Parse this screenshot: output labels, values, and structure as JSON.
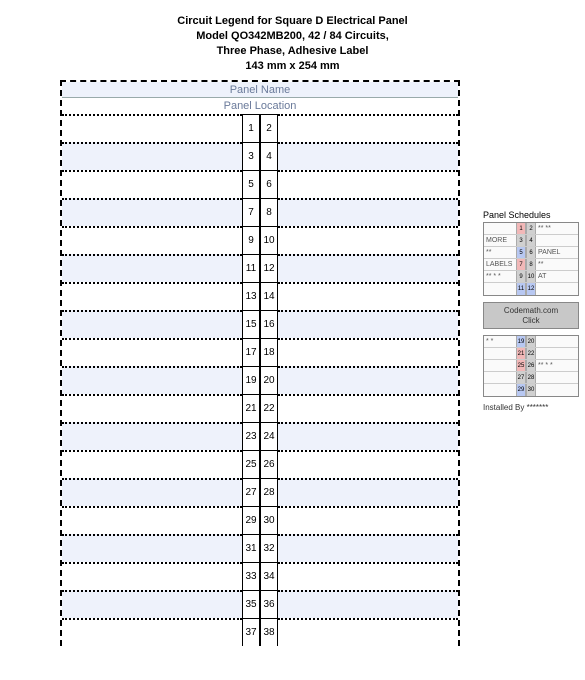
{
  "header": {
    "line1": "Circuit Legend for Square D Electrical Panel",
    "line2": "Model QO342MB200, 42 / 84 Circuits,",
    "line3": "Three Phase, Adhesive Label",
    "line4": "143 mm x 254 mm"
  },
  "panel": {
    "name_label": "Panel Name",
    "location_label": "Panel Location",
    "rows": [
      {
        "l": "1",
        "r": "2"
      },
      {
        "l": "3",
        "r": "4"
      },
      {
        "l": "5",
        "r": "6"
      },
      {
        "l": "7",
        "r": "8"
      },
      {
        "l": "9",
        "r": "10"
      },
      {
        "l": "11",
        "r": "12"
      },
      {
        "l": "13",
        "r": "14"
      },
      {
        "l": "15",
        "r": "16"
      },
      {
        "l": "17",
        "r": "18"
      },
      {
        "l": "19",
        "r": "20"
      },
      {
        "l": "21",
        "r": "22"
      },
      {
        "l": "23",
        "r": "24"
      },
      {
        "l": "25",
        "r": "26"
      },
      {
        "l": "27",
        "r": "28"
      },
      {
        "l": "29",
        "r": "30"
      },
      {
        "l": "31",
        "r": "32"
      },
      {
        "l": "33",
        "r": "34"
      },
      {
        "l": "35",
        "r": "36"
      },
      {
        "l": "37",
        "r": "38"
      }
    ],
    "colors": {
      "alt_bg": "#eef2fb",
      "base_bg": "#ffffff",
      "dotted": "#000000"
    }
  },
  "sidebar": {
    "title": "Panel Schedules",
    "table1": [
      {
        "l": "",
        "a": "1",
        "ac": "red",
        "b": "2",
        "bc": "gray",
        "r": "** **"
      },
      {
        "l": "MORE",
        "a": "3",
        "ac": "gray",
        "b": "4",
        "bc": "gray",
        "r": ""
      },
      {
        "l": "**",
        "a": "5",
        "ac": "blue",
        "b": "6",
        "bc": "gray",
        "r": "PANEL"
      },
      {
        "l": "LABELS",
        "a": "7",
        "ac": "red",
        "b": "8",
        "bc": "gray",
        "r": "**"
      },
      {
        "l": "** * *",
        "a": "9",
        "ac": "gray",
        "b": "10",
        "bc": "gray",
        "r": "AT"
      },
      {
        "l": "",
        "a": "11",
        "ac": "blue",
        "b": "12",
        "bc": "blue",
        "r": ""
      }
    ],
    "badge": {
      "l1": "Codemath.com",
      "l2": "Click"
    },
    "table2": [
      {
        "l": "* *",
        "a": "19",
        "ac": "blue",
        "b": "20",
        "bc": "gray",
        "r": ""
      },
      {
        "l": "",
        "a": "21",
        "ac": "red",
        "b": "22",
        "bc": "gray",
        "r": ""
      },
      {
        "l": "",
        "a": "25",
        "ac": "red",
        "b": "26",
        "bc": "gray",
        "r": "** * *"
      },
      {
        "l": "",
        "a": "27",
        "ac": "gray",
        "b": "28",
        "bc": "gray",
        "r": ""
      },
      {
        "l": "",
        "a": "29",
        "ac": "blue",
        "b": "30",
        "bc": "gray",
        "r": ""
      }
    ],
    "installed": "Installed By  *******"
  }
}
